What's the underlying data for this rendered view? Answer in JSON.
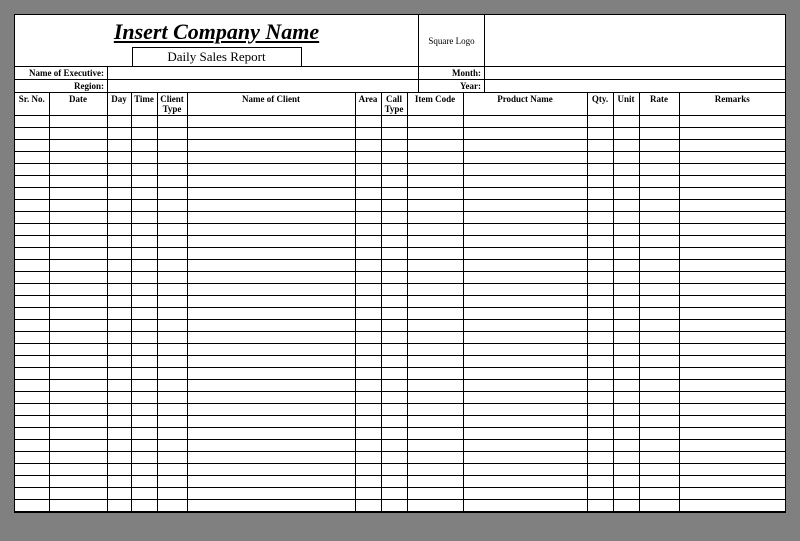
{
  "header": {
    "company_name": "Insert Company Name",
    "subtitle": "Daily Sales Report",
    "logo_text": "Square Logo"
  },
  "info": {
    "executive_label": "Name of Executive:",
    "region_label": "Region:",
    "month_label": "Month:",
    "year_label": "Year:"
  },
  "columns": {
    "srno": "Sr. No.",
    "date": "Date",
    "day": "Day",
    "time": "Time",
    "clienttype": "Client Type",
    "nameclient": "Name of Client",
    "area": "Area",
    "calltype": "Call Type",
    "itemcode": "Item Code",
    "productname": "Product Name",
    "qty": "Qty.",
    "unit": "Unit",
    "rate": "Rate",
    "remarks": "Remarks"
  },
  "style": {
    "type": "table",
    "page_bg": "#808080",
    "sheet_bg": "#ffffff",
    "border_color": "#000000",
    "title_fontsize": 22,
    "subtitle_fontsize": 13,
    "header_fontsize": 9,
    "body_row_height": 12,
    "num_body_rows": 33,
    "font_family": "Times New Roman"
  }
}
